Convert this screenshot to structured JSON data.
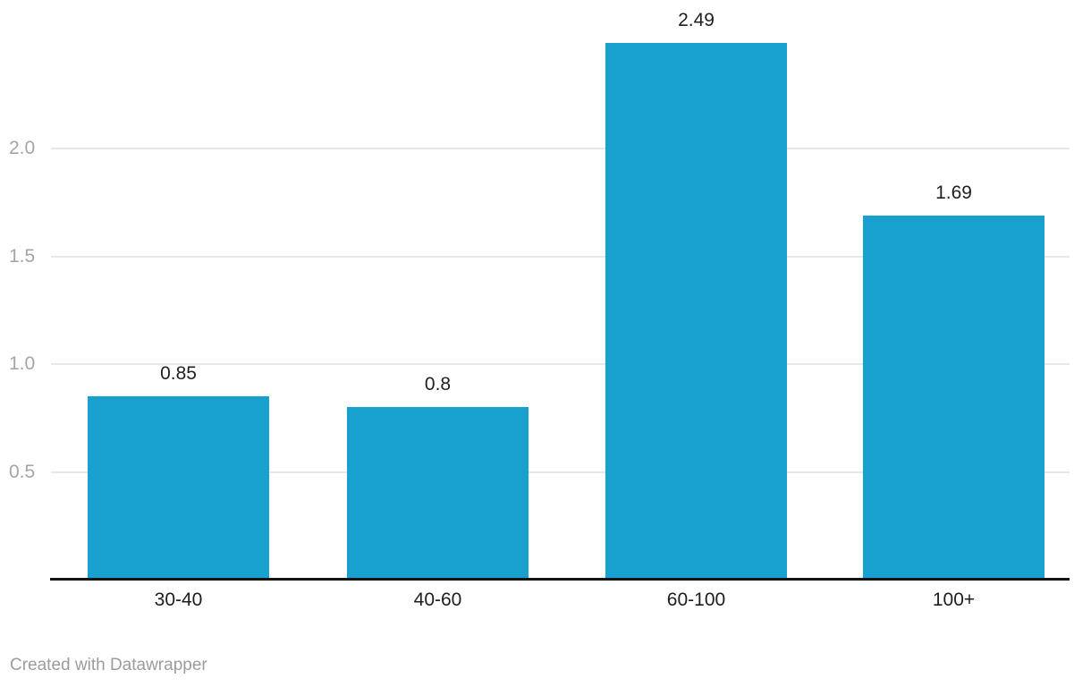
{
  "chart_data": {
    "type": "bar",
    "categories": [
      "30-40",
      "40-60",
      "60-100",
      "100+"
    ],
    "values": [
      0.85,
      0.8,
      2.49,
      1.69
    ],
    "value_labels": [
      "0.85",
      "0.8",
      "2.49",
      "1.69"
    ],
    "title": "",
    "xlabel": "",
    "ylabel": "",
    "ylim": [
      0,
      2.5
    ],
    "yticks": [
      0.5,
      1.0,
      1.5,
      2.0
    ],
    "ytick_labels": [
      "0.5",
      "1.0",
      "1.5",
      "2.0"
    ],
    "grid": true,
    "legend": false,
    "bar_color": "#18a1ce"
  },
  "footer": {
    "credit": "Created with Datawrapper"
  },
  "colors": {
    "bar": "#18a1ce",
    "gridline": "#e7e7e7",
    "y_tick_text": "#a5a5a5",
    "x_tick_text": "#1d1d1d",
    "value_label_text": "#1f1f1f",
    "axis_line": "#151515",
    "footer_text": "#9c9c9c",
    "background": "#ffffff"
  }
}
